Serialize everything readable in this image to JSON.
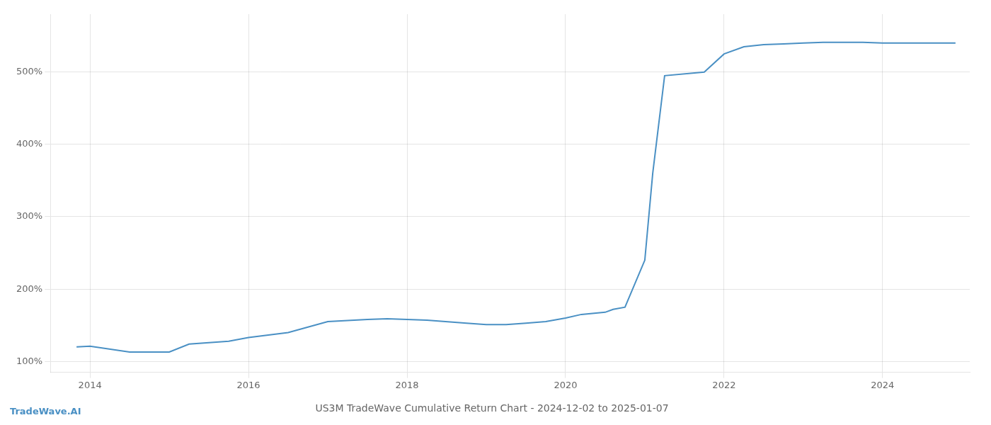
{
  "chart_data": {
    "type": "line",
    "title": "US3M TradeWave Cumulative Return Chart - 2024-12-02 to 2025-01-07",
    "annotations": [
      "TradeWave.AI"
    ],
    "x": [
      2013.83,
      2014.0,
      2014.5,
      2015.0,
      2015.25,
      2015.75,
      2016.0,
      2016.5,
      2017.0,
      2017.5,
      2017.75,
      2018.0,
      2018.25,
      2018.75,
      2019.0,
      2019.25,
      2019.5,
      2019.75,
      2020.0,
      2020.2,
      2020.5,
      2020.6,
      2020.75,
      2021.0,
      2021.1,
      2021.25,
      2021.75,
      2022.0,
      2022.25,
      2022.5,
      2022.75,
      2023.0,
      2023.25,
      2023.75,
      2024.0,
      2024.5,
      2024.92
    ],
    "values": [
      120,
      121,
      113,
      113,
      124,
      128,
      133,
      140,
      155,
      158,
      159,
      158,
      157,
      153,
      151,
      151,
      153,
      155,
      160,
      165,
      168,
      172,
      175,
      240,
      360,
      495,
      500,
      525,
      535,
      538,
      539,
      540,
      541,
      541,
      540,
      540,
      540
    ],
    "color": "#4a90c4",
    "xlim": [
      2013.5,
      2025.1
    ],
    "ylim": [
      85,
      580
    ],
    "xticks": [
      2014,
      2016,
      2018,
      2020,
      2022,
      2024
    ],
    "yticks": [
      {
        "value": 100,
        "label": "100%"
      },
      {
        "value": 200,
        "label": "200%"
      },
      {
        "value": 300,
        "label": "300%"
      },
      {
        "value": 400,
        "label": "400%"
      },
      {
        "value": 500,
        "label": "500%"
      }
    ],
    "grid": true
  }
}
